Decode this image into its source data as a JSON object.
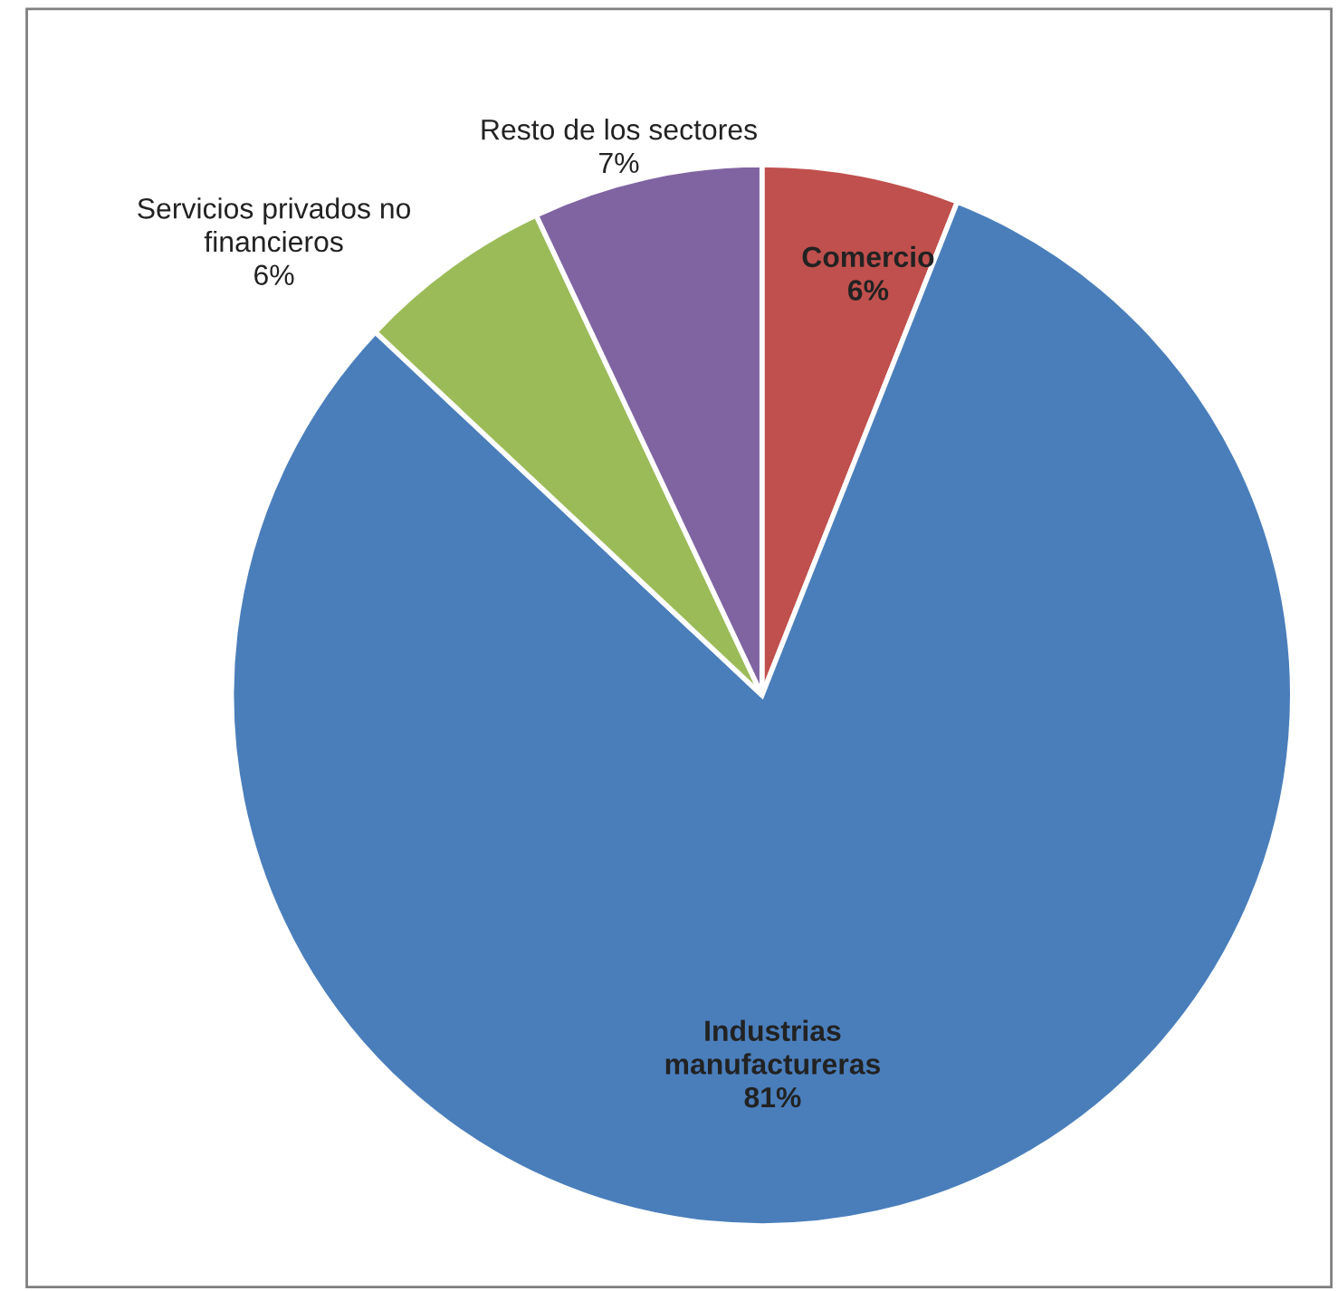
{
  "chart_data": {
    "type": "pie",
    "categories": [
      "Comercio",
      "Industrias\nmanufactureras",
      "Servicios privados no\nfinancieros",
      "Resto de los sectores"
    ],
    "values": [
      6,
      81,
      6,
      7
    ],
    "colors": [
      "#c0504d",
      "#4a7ebb",
      "#9bbb59",
      "#8064a2"
    ],
    "value_labels": [
      "6%",
      "81%",
      "6%",
      "7%"
    ],
    "legend": false
  }
}
